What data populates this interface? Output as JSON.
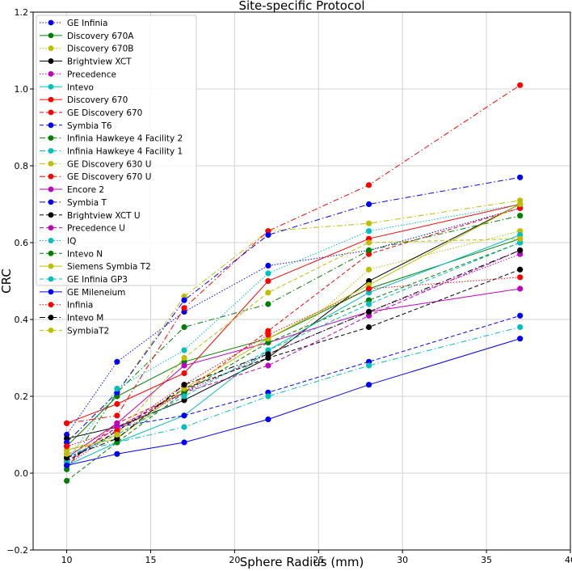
{
  "chart_data": {
    "type": "line",
    "title": "Site-specific Protocol",
    "xlabel": "Sphere Radius (mm)",
    "ylabel": "CRC",
    "xlim": [
      8,
      40
    ],
    "ylim": [
      -0.2,
      1.2
    ],
    "xticks": [
      10,
      15,
      20,
      25,
      30,
      35,
      40
    ],
    "yticks": [
      -0.2,
      0.0,
      0.2,
      0.4,
      0.6,
      0.8,
      1.0,
      1.2
    ],
    "ytick_labels": [
      "−0.2",
      "0.0",
      "0.2",
      "0.4",
      "0.6",
      "0.8",
      "1.0",
      "1.2"
    ],
    "grid": true,
    "legend_position": "upper-left",
    "x": [
      10,
      13,
      17,
      22,
      28,
      37
    ],
    "series": [
      {
        "name": "GE Infinia",
        "color": "#0000ff",
        "dash": "dotted",
        "values": [
          0.1,
          0.29,
          0.42,
          0.54,
          0.58,
          0.69
        ]
      },
      {
        "name": "Discovery 670A",
        "color": "#008000",
        "dash": "solid",
        "values": [
          0.07,
          0.2,
          0.29,
          0.35,
          0.48,
          0.61
        ]
      },
      {
        "name": "Discovery 670B",
        "color": "#bfbf00",
        "dash": "dotted",
        "values": [
          0.06,
          0.1,
          0.22,
          0.3,
          0.53,
          0.63
        ]
      },
      {
        "name": "Brightview XCT",
        "color": "#000000",
        "dash": "solid",
        "values": [
          0.09,
          0.12,
          0.19,
          0.3,
          0.5,
          0.7
        ]
      },
      {
        "name": "Precedence",
        "color": "#bf00bf",
        "dash": "dotted",
        "values": [
          0.02,
          0.11,
          0.21,
          0.31,
          0.42,
          0.57
        ]
      },
      {
        "name": "Intevo",
        "color": "#00bfbf",
        "dash": "solid",
        "values": [
          0.02,
          0.08,
          0.15,
          0.32,
          0.47,
          0.62
        ]
      },
      {
        "name": "Discovery 670",
        "color": "#ff0000",
        "dash": "solid",
        "values": [
          0.13,
          0.18,
          0.26,
          0.5,
          0.61,
          0.7
        ]
      },
      {
        "name": "GE Discovery 670",
        "color": "#ff0000",
        "dash": "dashed",
        "values": [
          0.02,
          0.13,
          0.21,
          0.37,
          0.57,
          0.69
        ]
      },
      {
        "name": "Symbia T6",
        "color": "#0000ff",
        "dash": "dashed",
        "values": [
          0.03,
          0.12,
          0.15,
          0.21,
          0.29,
          0.41
        ]
      },
      {
        "name": "Infinia Hawkeye 4 Facility 2",
        "color": "#008000",
        "dash": "dashdot",
        "values": [
          0.01,
          0.21,
          0.38,
          0.44,
          0.58,
          0.67
        ]
      },
      {
        "name": "Infinia Hawkeye 4 Facility 1",
        "color": "#00bfbf",
        "dash": "dashdot",
        "values": [
          0.05,
          0.08,
          0.12,
          0.2,
          0.28,
          0.38
        ]
      },
      {
        "name": "GE Discovery 630 U",
        "color": "#bfbf00",
        "dash": "dashdot",
        "values": [
          0.08,
          0.21,
          0.46,
          0.63,
          0.65,
          0.71
        ]
      },
      {
        "name": "GE Discovery 670 U",
        "color": "#ff0000",
        "dash": "dashdot",
        "values": [
          0.13,
          0.15,
          0.43,
          0.63,
          0.75,
          1.01
        ]
      },
      {
        "name": "Encore 2",
        "color": "#bf00bf",
        "dash": "solid",
        "values": [
          0.04,
          0.13,
          0.28,
          0.34,
          0.42,
          0.48
        ]
      },
      {
        "name": "Symbia T",
        "color": "#0000ff",
        "dash": "dashdot",
        "values": [
          0.08,
          0.21,
          0.45,
          0.62,
          0.7,
          0.77
        ]
      },
      {
        "name": "Brightview XCT U",
        "color": "#000000",
        "dash": "dashed",
        "values": [
          0.03,
          0.11,
          0.22,
          0.3,
          0.38,
          0.53
        ]
      },
      {
        "name": "Precedence U",
        "color": "#bf00bf",
        "dash": "dashed",
        "values": [
          0.03,
          0.12,
          0.21,
          0.28,
          0.41,
          0.58
        ]
      },
      {
        "name": "IQ",
        "color": "#00bfbf",
        "dash": "dotted",
        "values": [
          0.03,
          0.22,
          0.32,
          0.52,
          0.63,
          0.7
        ]
      },
      {
        "name": "Intevo N",
        "color": "#008000",
        "dash": "dashed",
        "values": [
          -0.02,
          0.08,
          0.21,
          0.34,
          0.45,
          0.6
        ]
      },
      {
        "name": "Siemens Symbia T2",
        "color": "#bfbf00",
        "dash": "solid",
        "values": [
          0.06,
          0.09,
          0.22,
          0.35,
          0.49,
          0.7
        ]
      },
      {
        "name": "GE Infinia GP3",
        "color": "#00bfbf",
        "dash": "dashed",
        "values": [
          0.04,
          0.1,
          0.2,
          0.32,
          0.44,
          0.6
        ]
      },
      {
        "name": "GE Mileneium",
        "color": "#0000ff",
        "dash": "solid",
        "values": [
          0.02,
          0.05,
          0.08,
          0.14,
          0.23,
          0.35
        ]
      },
      {
        "name": "Infinia",
        "color": "#ff0000",
        "dash": "dotted",
        "values": [
          0.07,
          0.11,
          0.23,
          0.36,
          0.48,
          0.51
        ]
      },
      {
        "name": "Intevo M",
        "color": "#000000",
        "dash": "dashdot",
        "values": [
          0.04,
          0.09,
          0.23,
          0.31,
          0.42,
          0.58
        ]
      },
      {
        "name": "SymbiaT2",
        "color": "#bfbf00",
        "dash": "dashed",
        "values": [
          0.05,
          0.1,
          0.3,
          0.47,
          0.6,
          0.61
        ]
      }
    ]
  }
}
